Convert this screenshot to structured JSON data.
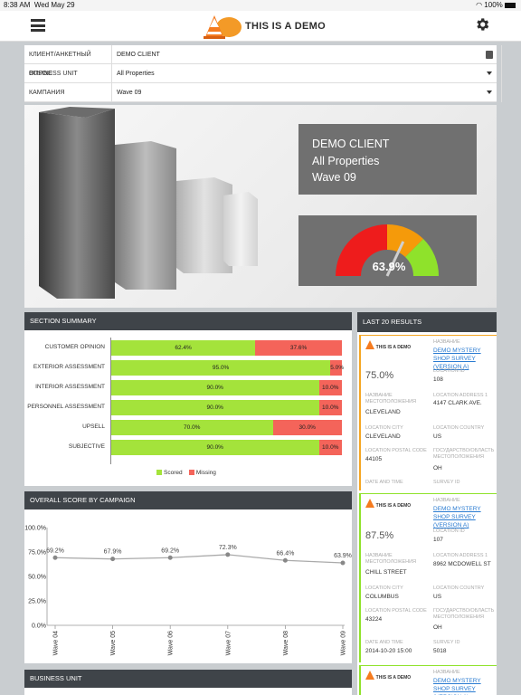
{
  "status_bar": {
    "time": "8:38 AM",
    "date": "Wed May 29",
    "battery": "100%"
  },
  "header": {
    "title": "THIS IS A DEMO",
    "menu_icon": "hamburger-icon",
    "settings_icon": "gear-icon"
  },
  "filters": [
    {
      "label": "КЛИЕНТ/АНКЕТНЫЙ ОПРОС",
      "value": "DEMO CLIENT"
    },
    {
      "label": "BUSINESS UNIT",
      "value": "All Properties"
    },
    {
      "label": "КАМПАНИЯ",
      "value": "Wave 09"
    }
  ],
  "hero": {
    "client": "DEMO CLIENT",
    "unit": "All Properties",
    "campaign": "Wave 09",
    "gauge_value": "63.9%",
    "gauge_fraction": 0.639,
    "gauge_colors": [
      "#ee1c1c",
      "#f59a0a",
      "#8fe22b"
    ]
  },
  "section_summary": {
    "title": "SECTION SUMMARY",
    "legend_scored": "Scored",
    "legend_missing": "Missing",
    "colors": {
      "scored": "#a4e33b",
      "missing": "#f4645a"
    },
    "rows": [
      {
        "name": "CUSTOMER OPINION",
        "scored": 62.4,
        "missing": 37.6,
        "scored_label": "62.4%",
        "missing_label": "37.6%"
      },
      {
        "name": "EXTERIOR ASSESSMENT",
        "scored": 95.0,
        "missing": 5.0,
        "scored_label": "95.0%",
        "missing_label": "5.0%"
      },
      {
        "name": "INTERIOR ASSESSMENT",
        "scored": 90.0,
        "missing": 10.0,
        "scored_label": "90.0%",
        "missing_label": "10.0%"
      },
      {
        "name": "PERSONNEL ASSESSMENT",
        "scored": 90.0,
        "missing": 10.0,
        "scored_label": "90.0%",
        "missing_label": "10.0%"
      },
      {
        "name": "UPSELL",
        "scored": 70.0,
        "missing": 30.0,
        "scored_label": "70.0%",
        "missing_label": "30.0%"
      },
      {
        "name": "SUBJECTIVE",
        "scored": 90.0,
        "missing": 10.0,
        "scored_label": "90.0%",
        "missing_label": "10.0%"
      }
    ]
  },
  "chart_data": {
    "type": "line",
    "title": "OVERALL SCORE BY CAMPAIGN",
    "categories": [
      "Wave 04",
      "Wave 05",
      "Wave 06",
      "Wave 07",
      "Wave 08",
      "Wave 09"
    ],
    "values": [
      69.2,
      67.9,
      69.2,
      72.3,
      66.4,
      63.9
    ],
    "value_labels": [
      "69.2%",
      "67.9%",
      "69.2%",
      "72.3%",
      "66.4%",
      "63.9%"
    ],
    "y_ticks": [
      "100.0%",
      "75.0%",
      "50.0%",
      "25.0%",
      "0.0%"
    ],
    "ylim": [
      0,
      100
    ],
    "grid": false
  },
  "business_unit": {
    "title": "BUSINESS UNIT"
  },
  "last20": {
    "title": "LAST 20 RESULTS",
    "logo_text": "THIS IS A DEMO",
    "labels": {
      "name": "НАЗВАНИЕ",
      "location_id": "LOCATION ID",
      "location_name": "НАЗВАНИЕ МЕСТОПОЛОЖЕНИЯ",
      "address": "LOCATION ADDRESS 1",
      "city": "LOCATION CITY",
      "country": "LOCATION COUNTRY",
      "postal": "LOCATION POSTAL CODE",
      "state": "ГОСУДАРСТВО/ОБЛАСТЬ МЕСТОПОЛОЖЕНИЯ",
      "datetime": "DATE AND TIME",
      "survey_id": "SURVEY ID"
    },
    "cards": [
      {
        "accent": "#f5a623",
        "score": "75.0%",
        "survey_name": "DEMO MYSTERY SHOP SURVEY (VERSION A)",
        "location_id": "108",
        "location_name": "CLEVELAND",
        "address": "4147 CLARK AVE.",
        "city": "CLEVELAND",
        "country": "US",
        "postal": "44105",
        "state": "OH",
        "datetime": "",
        "survey_id": ""
      },
      {
        "accent": "#8fe22b",
        "score": "87.5%",
        "survey_name": "DEMO MYSTERY SHOP SURVEY (VERSION A)",
        "location_id": "107",
        "location_name": "CHILL STREET",
        "address": "8962 MCDOWELL ST",
        "city": "COLUMBUS",
        "country": "US",
        "postal": "43224",
        "state": "OH",
        "datetime": "2014-10-20 15:00",
        "survey_id": "5018"
      },
      {
        "accent": "#8fe22b",
        "score": "",
        "survey_name": "DEMO MYSTERY SHOP SURVEY (VERSION A)"
      }
    ]
  }
}
